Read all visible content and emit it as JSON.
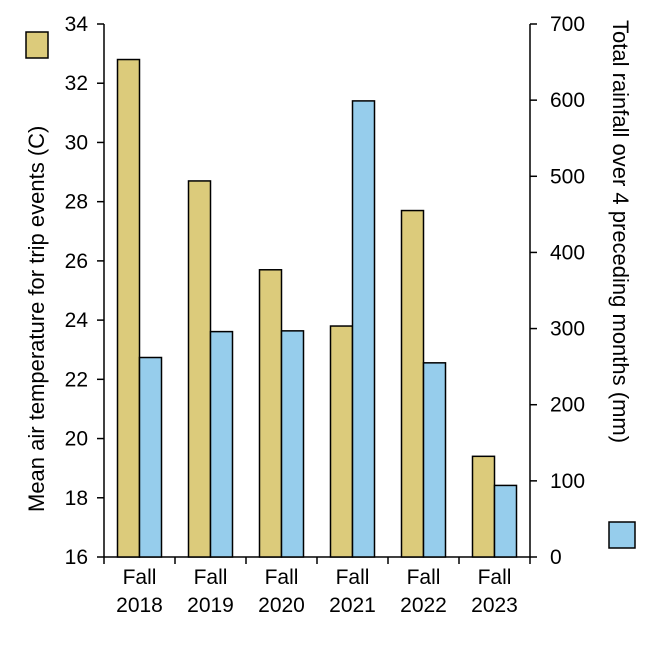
{
  "chart_data": {
    "type": "bar",
    "categories": [
      [
        "Fall",
        "2018"
      ],
      [
        "Fall",
        "2019"
      ],
      [
        "Fall",
        "2020"
      ],
      [
        "Fall",
        "2021"
      ],
      [
        "Fall",
        "2022"
      ],
      [
        "Fall",
        "2023"
      ]
    ],
    "series": [
      {
        "values": [
          32.8,
          28.7,
          25.7,
          23.8,
          27.7,
          19.4
        ],
        "color": "#dccb7b",
        "axis": "left"
      },
      {
        "values": [
          262,
          296,
          297,
          599,
          255,
          94
        ],
        "color": "#96cdec",
        "axis": "right"
      }
    ],
    "ylabel": "Mean air temperature for trip events (C)",
    "ylabel_right": "Total rainfall over 4 preceding months  (mm)",
    "ylim": [
      16,
      34
    ],
    "ylim_right": [
      0,
      700
    ],
    "yticks": [
      16,
      18,
      20,
      22,
      24,
      26,
      28,
      30,
      32,
      34
    ],
    "yticks_right": [
      0,
      100,
      200,
      300,
      400,
      500,
      600,
      700
    ],
    "legend_placement": "axis-title-ends",
    "grid": false
  }
}
